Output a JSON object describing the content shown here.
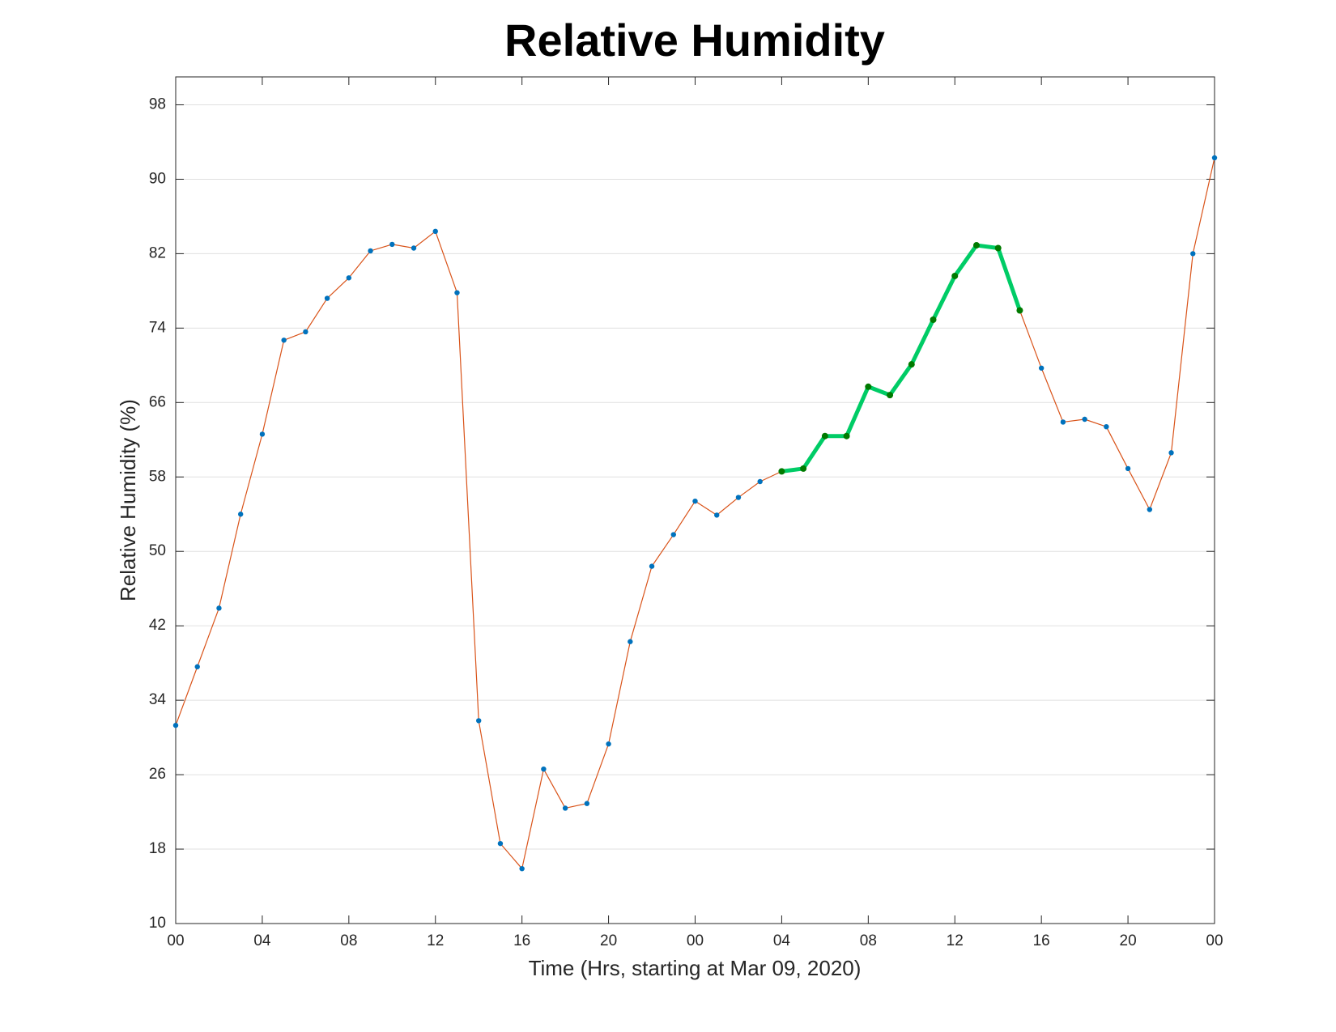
{
  "chart_data": {
    "type": "line",
    "title": "Relative Humidity",
    "x_label": "Time (Hrs, starting at Mar 09, 2020)",
    "y_label": "Relative Humidity (%)",
    "x": [
      0,
      1,
      2,
      3,
      4,
      5,
      6,
      7,
      8,
      9,
      10,
      11,
      12,
      13,
      14,
      15,
      16,
      17,
      18,
      19,
      20,
      21,
      22,
      23,
      24,
      25,
      26,
      27,
      28,
      29,
      30,
      31,
      32,
      33,
      34,
      35,
      36,
      37,
      38,
      39,
      40,
      41,
      42,
      43,
      44,
      45,
      46,
      47,
      48
    ],
    "series": [
      {
        "color": "#d95319",
        "marker_color": "#0072bd",
        "line_width": 1.2,
        "values": [
          31.3,
          37.6,
          43.9,
          54.0,
          62.6,
          72.7,
          73.6,
          77.2,
          79.4,
          82.3,
          83.0,
          82.6,
          84.4,
          77.8,
          31.8,
          18.6,
          15.9,
          26.6,
          22.4,
          22.9,
          29.3,
          40.3,
          48.4,
          51.8,
          55.4,
          53.9,
          55.8,
          57.5,
          58.6,
          58.9,
          62.4,
          62.4,
          67.7,
          66.8,
          70.1,
          74.9,
          79.6,
          82.9,
          82.6,
          75.9,
          69.7,
          63.9,
          64.2,
          63.4,
          58.9,
          54.5,
          60.6,
          82.0,
          92.3
        ]
      },
      {
        "color": "#00cc66",
        "marker_color": "#007a00",
        "line_width": 5,
        "values": [
          null,
          null,
          null,
          null,
          null,
          null,
          null,
          null,
          null,
          null,
          null,
          null,
          null,
          null,
          null,
          null,
          null,
          null,
          null,
          null,
          null,
          null,
          null,
          null,
          null,
          null,
          null,
          null,
          58.6,
          58.9,
          62.4,
          62.4,
          67.7,
          66.8,
          70.1,
          74.9,
          79.6,
          82.9,
          82.6,
          75.9,
          null,
          null,
          null,
          null,
          null,
          null,
          null,
          null,
          null
        ]
      }
    ],
    "xlim": [
      0,
      48
    ],
    "xticks": [
      {
        "value": 0,
        "label": "00"
      },
      {
        "value": 4,
        "label": "04"
      },
      {
        "value": 8,
        "label": "08"
      },
      {
        "value": 12,
        "label": "12"
      },
      {
        "value": 16,
        "label": "16"
      },
      {
        "value": 20,
        "label": "20"
      },
      {
        "value": 24,
        "label": "00"
      },
      {
        "value": 28,
        "label": "04"
      },
      {
        "value": 32,
        "label": "08"
      },
      {
        "value": 36,
        "label": "12"
      },
      {
        "value": 40,
        "label": "16"
      },
      {
        "value": 44,
        "label": "20"
      },
      {
        "value": 48,
        "label": "00"
      }
    ],
    "ylim": [
      10,
      101
    ],
    "yticks": [
      10,
      18,
      26,
      34,
      42,
      50,
      58,
      66,
      74,
      82,
      90,
      98
    ],
    "grid": true
  }
}
